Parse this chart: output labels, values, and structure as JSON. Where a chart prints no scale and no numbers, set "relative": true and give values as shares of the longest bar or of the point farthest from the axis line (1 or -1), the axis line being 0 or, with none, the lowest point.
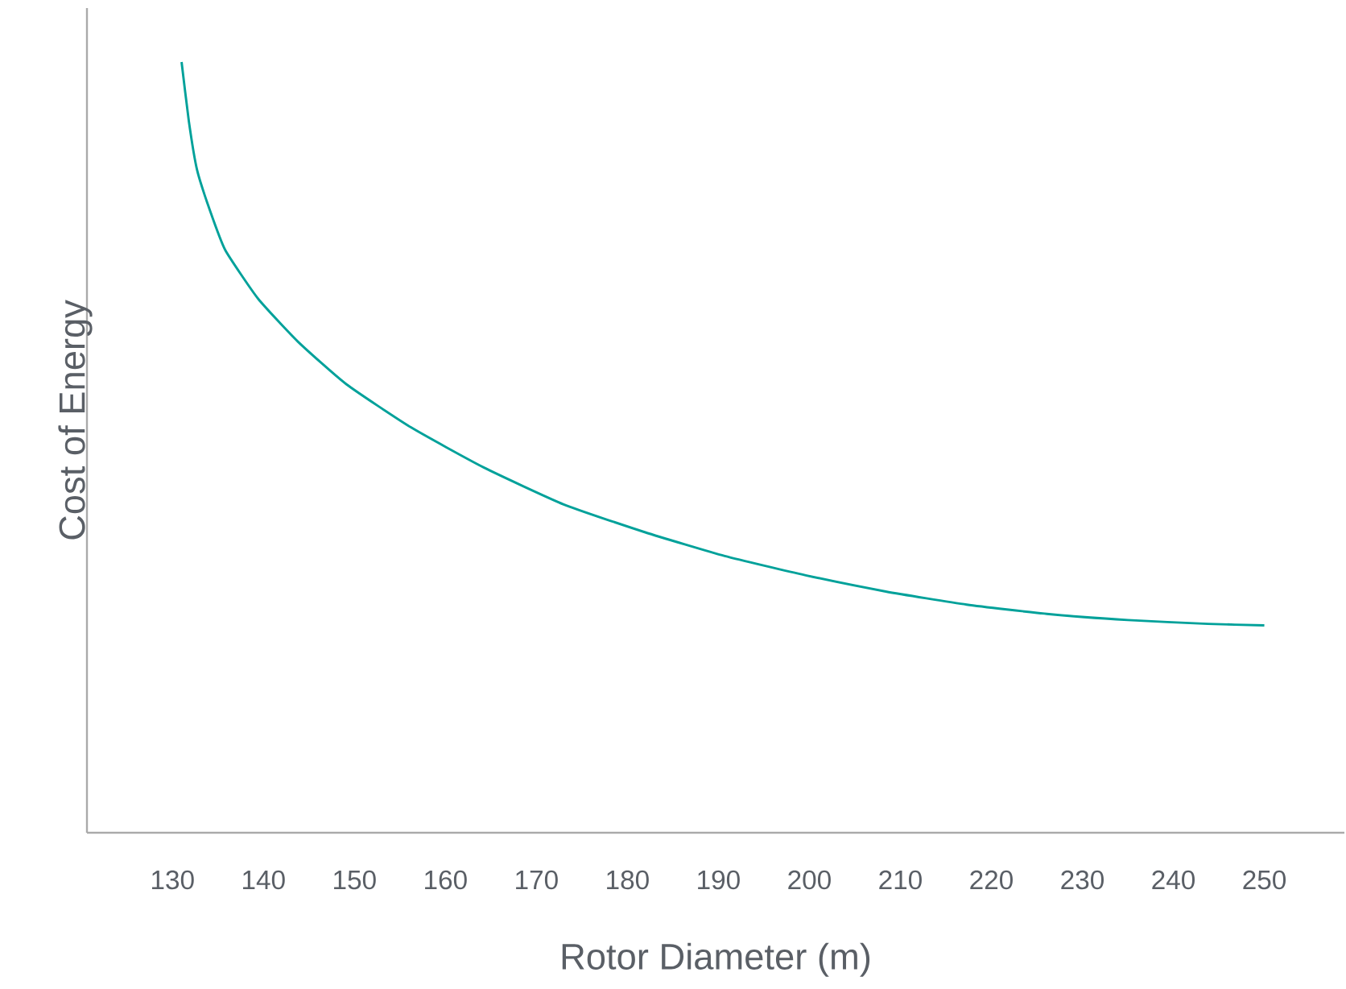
{
  "chart_data": {
    "type": "line",
    "relative": true,
    "xlabel": "Rotor Diameter (m)",
    "ylabel": "Cost of Energy",
    "xlim": [
      120.6,
      258.8
    ],
    "xticks": [
      130,
      140,
      150,
      160,
      170,
      180,
      190,
      200,
      210,
      220,
      230,
      240,
      250
    ],
    "series": [
      {
        "color": "#00a19a",
        "x": [
          131,
          131.8,
          132.7,
          134.1,
          135.8,
          139.4,
          143.8,
          149.1,
          156.2,
          164.2,
          173.0,
          181.9,
          190.7,
          199.6,
          208.4,
          217.3,
          226.1,
          235,
          243.8,
          250
        ],
        "values": [
          1.0,
          0.923,
          0.86,
          0.808,
          0.756,
          0.693,
          0.637,
          0.582,
          0.526,
          0.474,
          0.426,
          0.39,
          0.359,
          0.334,
          0.313,
          0.296,
          0.284,
          0.276,
          0.271,
          0.269
        ]
      }
    ]
  }
}
